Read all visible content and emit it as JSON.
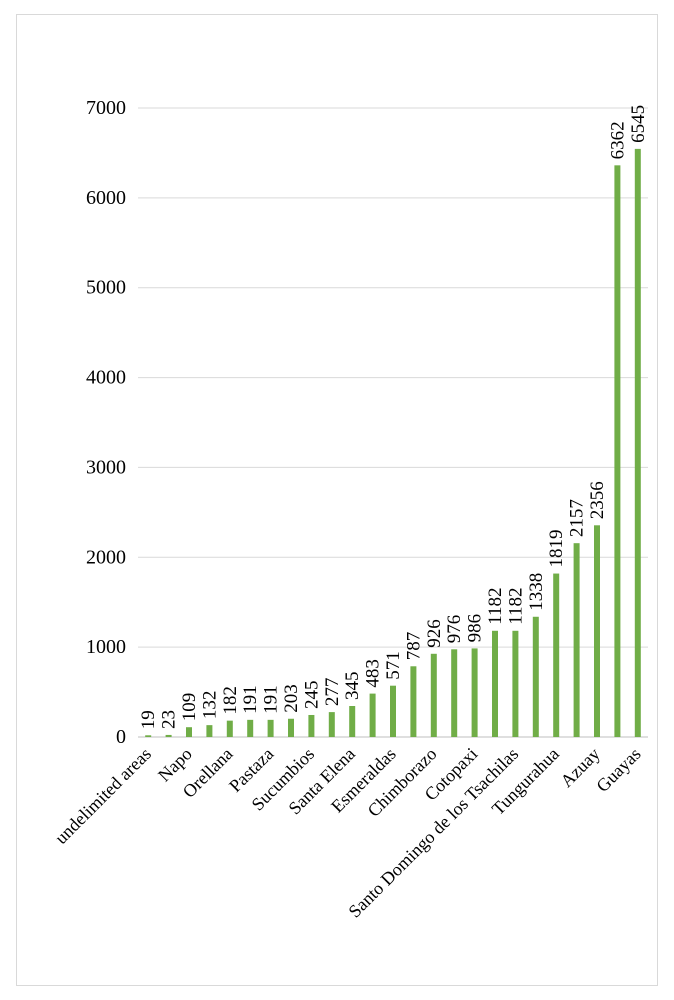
{
  "chart_data": {
    "type": "bar",
    "categories": [
      "undelimited areas",
      "",
      "Napo",
      "",
      "Orellana",
      "",
      "Pastaza",
      "",
      "Sucumbios",
      "",
      "Santa Elena",
      "",
      "Esmeraldas",
      "",
      "Chimborazo",
      "",
      "Cotopaxi",
      "",
      "Santo Domingo de los Tsachilas",
      "",
      "Tungurahua",
      "",
      "Azuay",
      "",
      "Guayas"
    ],
    "values": [
      19,
      23,
      109,
      132,
      182,
      191,
      191,
      203,
      245,
      277,
      345,
      483,
      571,
      787,
      926,
      976,
      986,
      1182,
      1182,
      1338,
      1819,
      2157,
      2356,
      6362,
      6545
    ],
    "data_labels": [
      "19",
      "23",
      "109",
      "132",
      "182",
      "191",
      "191",
      "203",
      "245",
      "277",
      "345",
      "483",
      "571",
      "787",
      "926",
      "976",
      "986",
      "1182",
      "1182",
      "1338",
      "1819",
      "2157",
      "2356",
      "6362",
      "6545"
    ],
    "yticks": [
      "0",
      "1000",
      "2000",
      "3000",
      "4000",
      "5000",
      "6000",
      "7000"
    ],
    "ylim": [
      0,
      7000
    ],
    "grid": true,
    "legend": "none",
    "colors": {
      "bar": "#70ad47",
      "grid": "#d9d9d9",
      "axis": "#bfbfbf"
    }
  }
}
